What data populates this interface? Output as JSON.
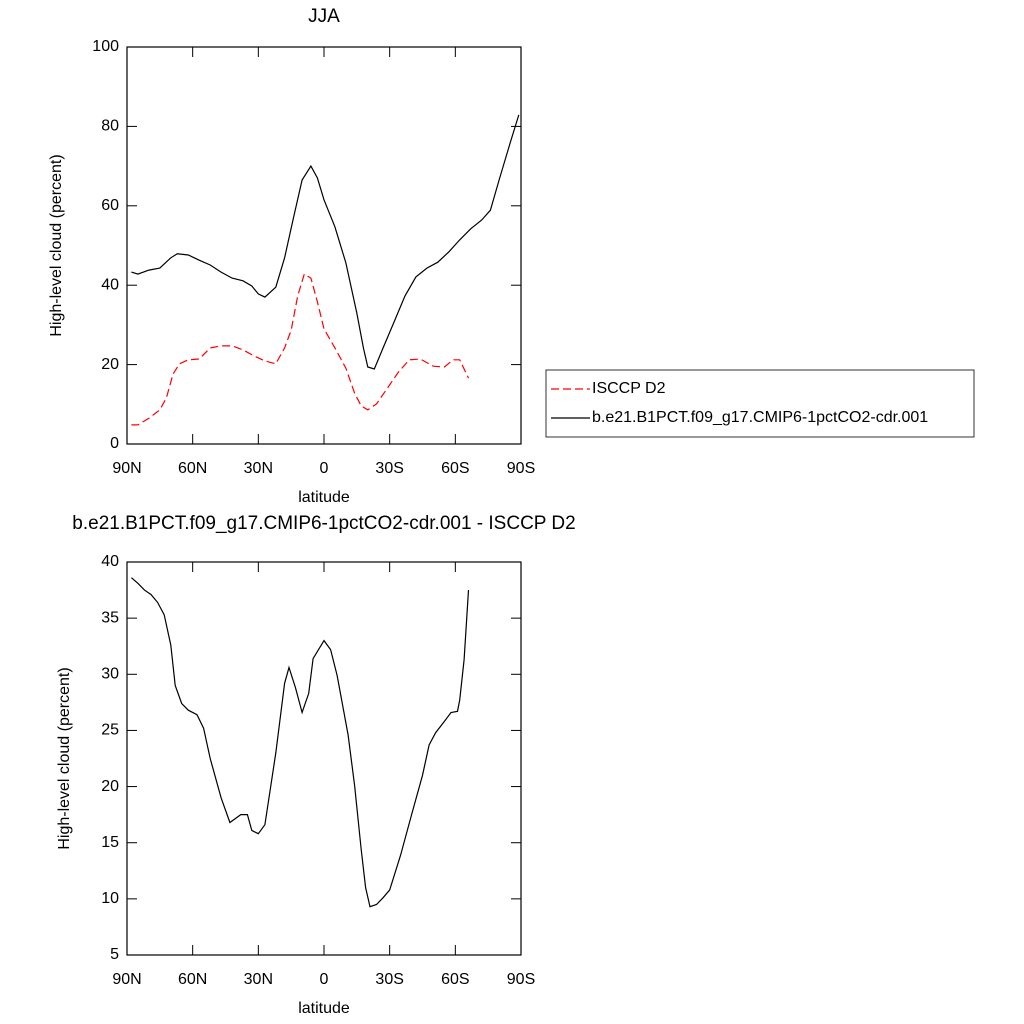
{
  "chart_data": [
    {
      "type": "line",
      "title": "JJA",
      "xlabel": "latitude",
      "ylabel": "High-level cloud (percent)",
      "xlim": [
        90,
        -90
      ],
      "ylim": [
        0,
        100
      ],
      "xticks": [
        {
          "value": 90,
          "label": "90N"
        },
        {
          "value": 60,
          "label": "60N"
        },
        {
          "value": 30,
          "label": "30N"
        },
        0,
        {
          "value": -30,
          "label": "30S"
        },
        {
          "value": -60,
          "label": "60S"
        },
        {
          "value": -90,
          "label": "90S"
        }
      ],
      "yticks": [
        0,
        20,
        40,
        60,
        80,
        100
      ],
      "legend": "right",
      "series": [
        {
          "name": "ISCCP D2",
          "color": "#ff0000",
          "linestyle": "dashed",
          "x": [
            88,
            85,
            80,
            75,
            72,
            69,
            66,
            62,
            57,
            52,
            47,
            42,
            37,
            32,
            27,
            22,
            18,
            15,
            12,
            9,
            6,
            3,
            0,
            -5,
            -10,
            -14,
            -17,
            -20,
            -24,
            -29,
            -34,
            -39,
            -44,
            -50,
            -55,
            -59,
            -62,
            -66
          ],
          "values": [
            4.8,
            4.8,
            6.5,
            8.6,
            11.6,
            17.6,
            20.2,
            21.2,
            21.4,
            24.2,
            24.7,
            24.7,
            23.7,
            22.2,
            20.9,
            20.2,
            24.2,
            28.7,
            37.3,
            42.8,
            41.8,
            35.8,
            29.0,
            24.2,
            19.1,
            12.8,
            9.6,
            8.6,
            10.1,
            14.1,
            18.1,
            21.2,
            21.4,
            19.6,
            19.4,
            21.2,
            21.2,
            16.6
          ]
        },
        {
          "name": "b.e21.B1PCT.f09_g17.CMIP6-1pctCO2-cdr.001",
          "color": "#000000",
          "linestyle": "solid",
          "x": [
            88,
            85,
            80,
            75,
            70,
            67,
            62,
            57,
            52,
            47,
            42,
            37,
            33,
            30,
            27,
            22,
            18,
            14,
            10,
            6,
            3,
            0,
            -5,
            -10,
            -15,
            -18,
            -20,
            -23,
            -27,
            -32,
            -37,
            -42,
            -47,
            -52,
            -57,
            -62,
            -67,
            -72,
            -76,
            -80,
            -85,
            -89
          ],
          "values": [
            43.3,
            42.8,
            43.8,
            44.3,
            46.9,
            47.9,
            47.6,
            46.3,
            45.1,
            43.3,
            41.8,
            41.1,
            39.8,
            37.8,
            37.0,
            39.5,
            46.9,
            56.9,
            66.5,
            70.0,
            67.0,
            61.5,
            54.7,
            45.6,
            33.0,
            24.2,
            19.4,
            18.9,
            24.2,
            30.7,
            37.3,
            42.1,
            44.3,
            45.8,
            48.4,
            51.4,
            54.2,
            56.4,
            58.9,
            66.5,
            75.8,
            82.9
          ]
        }
      ]
    },
    {
      "type": "line",
      "title": "b.e21.B1PCT.f09_g17.CMIP6-1pctCO2-cdr.001 - ISCCP D2",
      "xlabel": "latitude",
      "ylabel": "High-level cloud (percent)",
      "xlim": [
        90,
        -90
      ],
      "ylim": [
        5,
        40
      ],
      "xticks": [
        {
          "value": 90,
          "label": "90N"
        },
        {
          "value": 60,
          "label": "60N"
        },
        {
          "value": 30,
          "label": "30N"
        },
        0,
        {
          "value": -30,
          "label": "30S"
        },
        {
          "value": -60,
          "label": "60S"
        },
        {
          "value": -90,
          "label": "90S"
        }
      ],
      "yticks": [
        5,
        10,
        15,
        20,
        25,
        30,
        35,
        40
      ],
      "series": [
        {
          "color": "#000000",
          "linestyle": "solid",
          "x": [
            88,
            85,
            82,
            79,
            76,
            73,
            70,
            68,
            65,
            62,
            58,
            55,
            52,
            47,
            43,
            38,
            35,
            33,
            30,
            27,
            22,
            18,
            16,
            13,
            10,
            7,
            5,
            0,
            -3,
            -6,
            -11,
            -14,
            -17,
            -19,
            -21,
            -24,
            -27,
            -30,
            -35,
            -40,
            -45,
            -48,
            -51,
            -55,
            -58,
            -61,
            -62,
            -64,
            -66
          ],
          "values": [
            38.6,
            38.1,
            37.5,
            37.1,
            36.4,
            35.3,
            32.6,
            29.0,
            27.4,
            26.8,
            26.4,
            25.2,
            22.5,
            19.0,
            16.8,
            17.5,
            17.5,
            16.1,
            15.8,
            16.6,
            23.0,
            29.2,
            30.6,
            28.8,
            26.6,
            28.3,
            31.4,
            33.0,
            32.2,
            29.9,
            24.6,
            20.1,
            14.4,
            11.0,
            9.3,
            9.5,
            10.1,
            10.8,
            13.9,
            17.5,
            21.0,
            23.7,
            24.8,
            25.8,
            26.6,
            26.7,
            27.7,
            31.3,
            37.5
          ]
        }
      ]
    }
  ]
}
